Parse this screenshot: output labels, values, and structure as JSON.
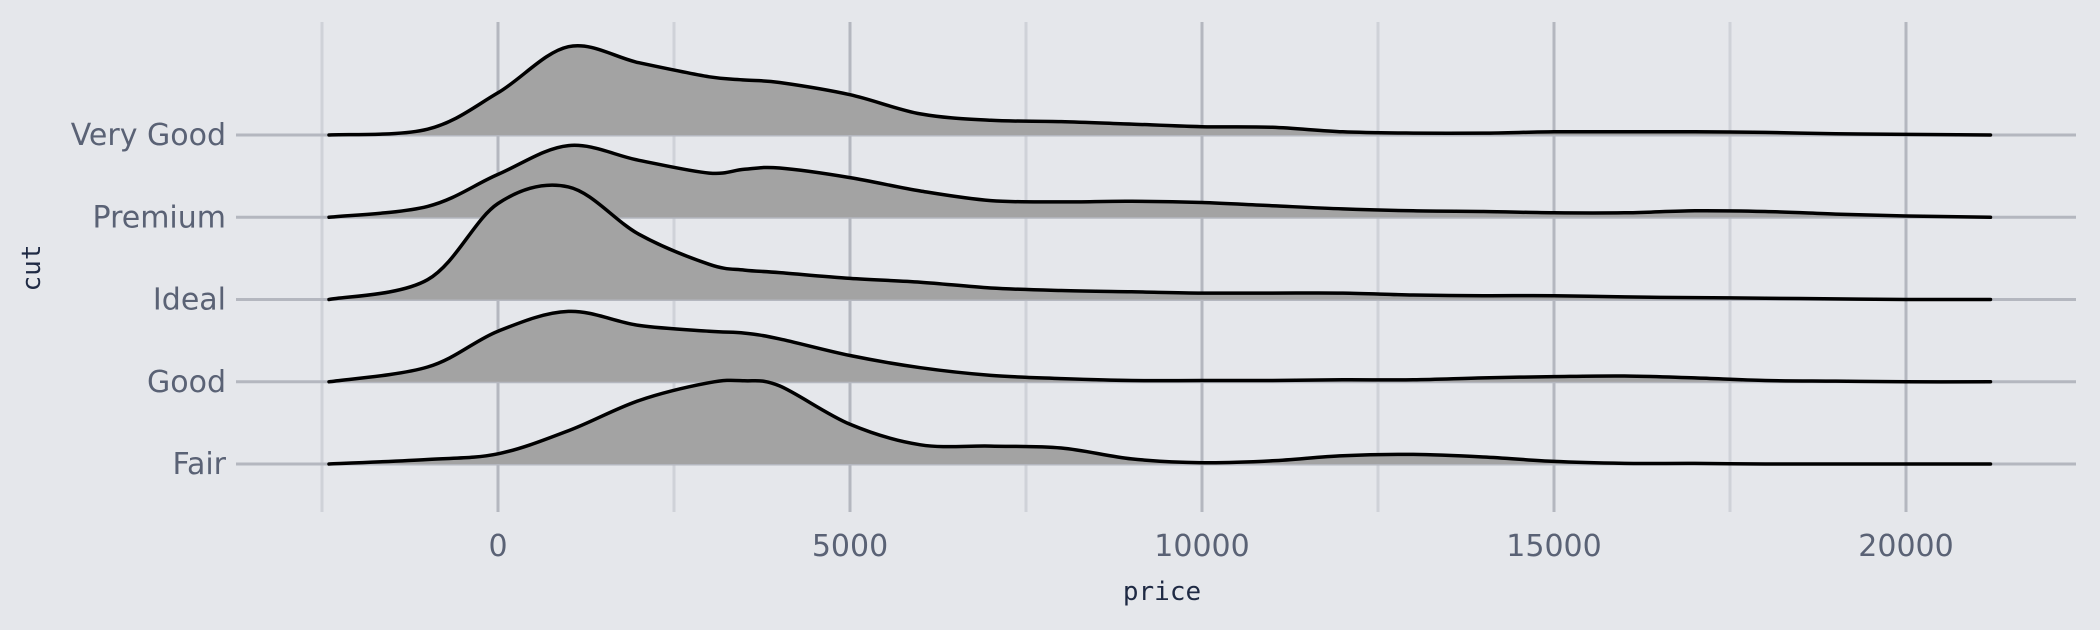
{
  "chart_data": {
    "type": "area",
    "subtype": "ridgeline",
    "title": "",
    "xlabel": "price",
    "ylabel": "cut",
    "xlim": [
      -2500,
      22500
    ],
    "x_ticks": [
      0,
      5000,
      10000,
      15000,
      20000
    ],
    "x_minor_ticks": [
      -2500,
      2500,
      7500,
      12500,
      17500
    ],
    "grid": true,
    "legend": "none",
    "categories": [
      "Fair",
      "Good",
      "Ideal",
      "Premium",
      "Very Good"
    ],
    "colors": {
      "background": "#e5e7eb",
      "fill": "#a3a3a3",
      "line": "#000000",
      "grid_major": "#b4b7bf",
      "grid_minor": "#cfd2d8",
      "tick_text": "#5a6275",
      "axis_title": "#1f2a44"
    },
    "x": [
      -2400,
      -1000,
      0,
      1000,
      2000,
      3000,
      3500,
      4000,
      5000,
      6000,
      7000,
      8000,
      9000,
      10000,
      11000,
      12000,
      13000,
      14000,
      15000,
      16000,
      17000,
      18000,
      19000,
      20000,
      21200
    ],
    "series": [
      {
        "name": "Fair",
        "values": [
          0.0,
          0.07,
          0.16,
          0.52,
          0.99,
          1.27,
          1.3,
          1.22,
          0.62,
          0.3,
          0.28,
          0.25,
          0.08,
          0.02,
          0.05,
          0.13,
          0.15,
          0.11,
          0.04,
          0.01,
          0.01,
          0.0,
          0.0,
          0.0,
          0.0
        ]
      },
      {
        "name": "Good",
        "values": [
          0.0,
          0.23,
          0.79,
          1.1,
          0.88,
          0.79,
          0.76,
          0.67,
          0.41,
          0.22,
          0.1,
          0.05,
          0.02,
          0.02,
          0.02,
          0.03,
          0.03,
          0.06,
          0.08,
          0.09,
          0.06,
          0.02,
          0.01,
          0.0,
          0.0
        ]
      },
      {
        "name": "Ideal",
        "values": [
          0.0,
          0.31,
          1.5,
          1.76,
          1.02,
          0.55,
          0.46,
          0.42,
          0.33,
          0.27,
          0.18,
          0.14,
          0.12,
          0.1,
          0.1,
          0.1,
          0.07,
          0.06,
          0.06,
          0.04,
          0.03,
          0.02,
          0.01,
          0.0,
          0.0
        ]
      },
      {
        "name": "Premium",
        "values": [
          0.0,
          0.17,
          0.67,
          1.12,
          0.89,
          0.69,
          0.75,
          0.77,
          0.62,
          0.41,
          0.26,
          0.24,
          0.25,
          0.23,
          0.18,
          0.13,
          0.1,
          0.09,
          0.07,
          0.07,
          0.1,
          0.09,
          0.05,
          0.02,
          0.0
        ]
      },
      {
        "name": "Very Good",
        "values": [
          0.0,
          0.09,
          0.66,
          1.38,
          1.13,
          0.91,
          0.86,
          0.82,
          0.63,
          0.33,
          0.23,
          0.21,
          0.17,
          0.13,
          0.12,
          0.05,
          0.03,
          0.03,
          0.05,
          0.05,
          0.05,
          0.04,
          0.02,
          0.01,
          0.0
        ]
      }
    ]
  }
}
